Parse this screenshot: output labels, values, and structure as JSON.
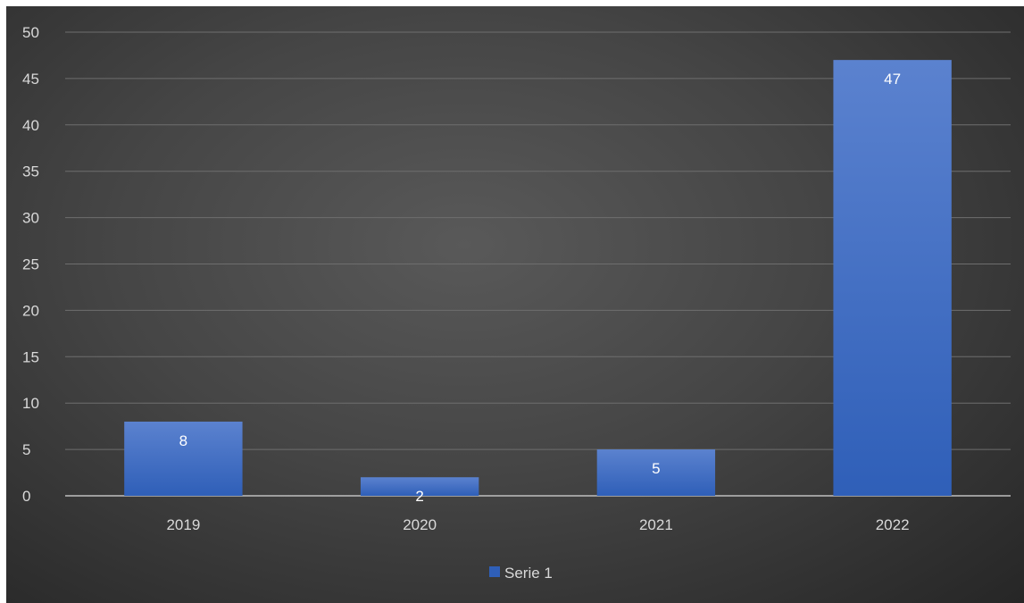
{
  "chart_data": {
    "type": "bar",
    "categories": [
      "2019",
      "2020",
      "2021",
      "2022"
    ],
    "series": [
      {
        "name": "Serie 1",
        "values": [
          8,
          2,
          5,
          47
        ]
      }
    ],
    "ylim": [
      0,
      50
    ],
    "y_ticks": [
      0,
      5,
      10,
      15,
      20,
      25,
      30,
      35,
      40,
      45,
      50
    ],
    "grid": true,
    "legend": "bottom-center",
    "data_labels": true
  },
  "colors": {
    "bar_top": "#5b82cf",
    "bar_bottom": "#2f5fb8",
    "gridline": "#6e6e6e",
    "axis": "#bfbfbf"
  }
}
